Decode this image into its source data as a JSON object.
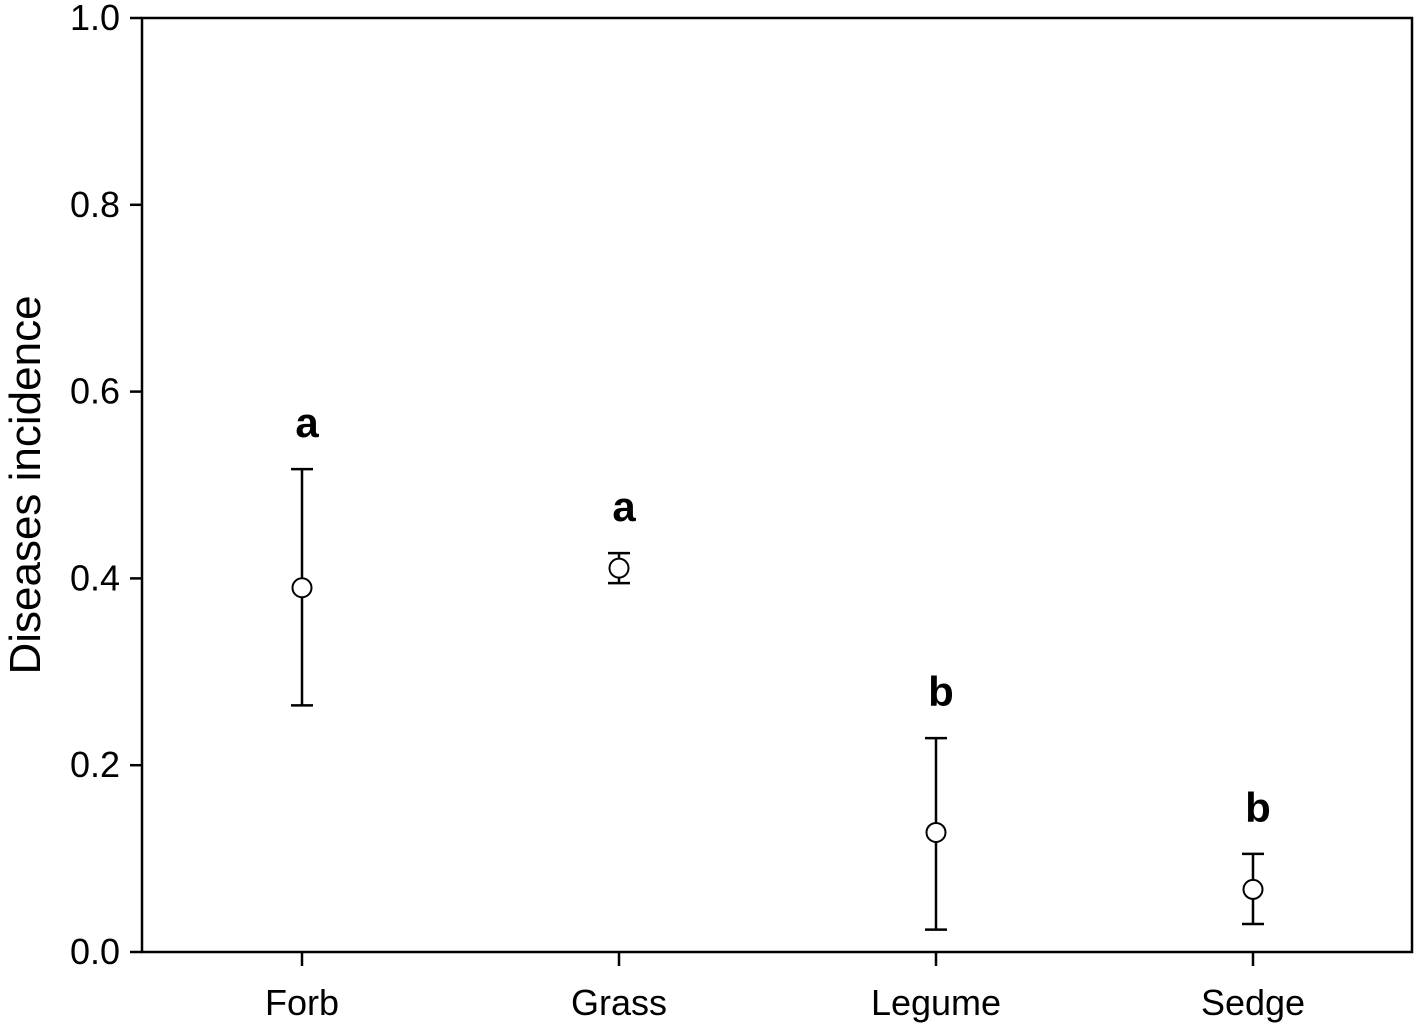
{
  "chart_data": {
    "type": "scatter",
    "title": "",
    "xlabel": "",
    "ylabel": "Diseases incidence",
    "ylim": [
      0.0,
      1.0
    ],
    "yticks": [
      "0.0",
      "0.2",
      "0.4",
      "0.6",
      "0.8",
      "1.0"
    ],
    "yticks_values": [
      0.0,
      0.2,
      0.4,
      0.6,
      0.8,
      1.0
    ],
    "grid": false,
    "legend": "none",
    "categories": [
      "Forb",
      "Grass",
      "Legume",
      "Sedge"
    ],
    "series": [
      {
        "values": [
          0.39,
          0.411,
          0.128,
          0.067
        ],
        "error_upper": [
          0.517,
          0.427,
          0.229,
          0.105
        ],
        "error_lower": [
          0.264,
          0.395,
          0.024,
          0.03
        ],
        "annotations": [
          "a",
          "a",
          "b",
          "b"
        ]
      }
    ]
  }
}
